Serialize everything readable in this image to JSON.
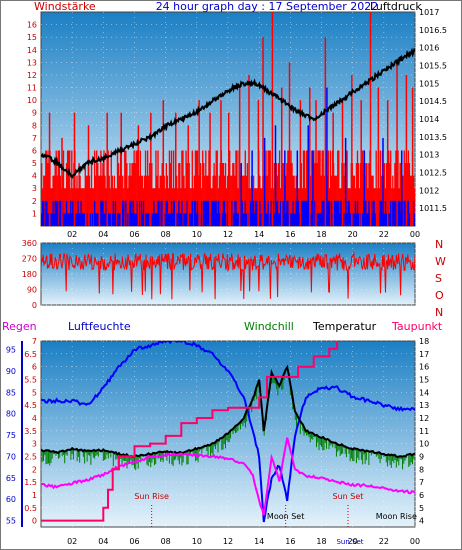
{
  "header": {
    "left_title": "Windstärke",
    "center_title": "24 hour graph day : 17 September 2022",
    "right_title": "Luftdruck"
  },
  "colors": {
    "red_series": "#ff0000",
    "blue_series": "#0000ff",
    "black_series": "#000000",
    "green_series": "#008000",
    "magenta_series": "#ff00ff",
    "crimson_series": "#ff0066",
    "axis_text_red": "#cc0000",
    "axis_text_blue": "#0000cc",
    "sun_text": "#cc0000",
    "bg_top": "#1b7fc4",
    "bg_bottom": "#e4f2fb"
  },
  "chart_data": [
    {
      "name": "wind",
      "type": "bar",
      "title": "24 hour graph day : 17 September 2022",
      "left_axis_label": "Windstärke",
      "right_axis_label": "Luftdruck",
      "x_ticks": [
        "02",
        "04",
        "06",
        "08",
        "10",
        "12",
        "14",
        "16",
        "18",
        "20",
        "22",
        "00"
      ],
      "left_ticks": [
        "1",
        "2",
        "3",
        "4",
        "5",
        "6",
        "7",
        "8",
        "9",
        "10",
        "11",
        "12",
        "13",
        "14",
        "15",
        "16"
      ],
      "right_ticks": [
        "1011.5",
        "1012",
        "1012.5",
        "1013",
        "1013.5",
        "1014",
        "1014.5",
        "1015",
        "1015.5",
        "1016",
        "1016.5",
        "1017"
      ],
      "ylim_left": [
        0,
        17
      ],
      "ylim_right": [
        1011,
        1017
      ],
      "gust_baseline_levels": [
        3,
        4,
        5,
        6
      ],
      "wind_baseline_levels": [
        1,
        2
      ],
      "gust_spikes": [
        {
          "hour": 0.5,
          "value": 9
        },
        {
          "hour": 1.3,
          "value": 7
        },
        {
          "hour": 2.1,
          "value": 9
        },
        {
          "hour": 3.0,
          "value": 8
        },
        {
          "hour": 4.2,
          "value": 9
        },
        {
          "hour": 5.1,
          "value": 9
        },
        {
          "hour": 6.2,
          "value": 8
        },
        {
          "hour": 7.0,
          "value": 9
        },
        {
          "hour": 7.8,
          "value": 10
        },
        {
          "hour": 8.6,
          "value": 9
        },
        {
          "hour": 9.4,
          "value": 8
        },
        {
          "hour": 10.1,
          "value": 10
        },
        {
          "hour": 10.8,
          "value": 9
        },
        {
          "hour": 11.5,
          "value": 10
        },
        {
          "hour": 12.0,
          "value": 9
        },
        {
          "hour": 12.7,
          "value": 11
        },
        {
          "hour": 13.3,
          "value": 12
        },
        {
          "hour": 13.9,
          "value": 10
        },
        {
          "hour": 14.2,
          "value": 15
        },
        {
          "hour": 14.8,
          "value": 17
        },
        {
          "hour": 15.4,
          "value": 11
        },
        {
          "hour": 15.9,
          "value": 13
        },
        {
          "hour": 16.6,
          "value": 10
        },
        {
          "hour": 17.2,
          "value": 11
        },
        {
          "hour": 17.6,
          "value": 10
        },
        {
          "hour": 18.2,
          "value": 15
        },
        {
          "hour": 18.7,
          "value": 9
        },
        {
          "hour": 19.3,
          "value": 10
        },
        {
          "hour": 19.9,
          "value": 12
        },
        {
          "hour": 20.5,
          "value": 10
        },
        {
          "hour": 21.1,
          "value": 17
        },
        {
          "hour": 21.6,
          "value": 11
        },
        {
          "hour": 22.2,
          "value": 10
        },
        {
          "hour": 22.8,
          "value": 13
        },
        {
          "hour": 23.4,
          "value": 12
        },
        {
          "hour": 23.8,
          "value": 11
        }
      ],
      "wind_spikes": [
        {
          "hour": 12.8,
          "value": 5
        },
        {
          "hour": 13.5,
          "value": 6
        },
        {
          "hour": 14.3,
          "value": 7
        },
        {
          "hour": 15.0,
          "value": 8
        },
        {
          "hour": 15.6,
          "value": 6
        },
        {
          "hour": 16.4,
          "value": 6
        },
        {
          "hour": 17.1,
          "value": 8
        },
        {
          "hour": 17.4,
          "value": 6
        },
        {
          "hour": 18.3,
          "value": 11
        },
        {
          "hour": 19.5,
          "value": 7
        },
        {
          "hour": 20.7,
          "value": 6
        },
        {
          "hour": 21.9,
          "value": 7
        },
        {
          "hour": 23.1,
          "value": 6
        }
      ],
      "pressure": [
        {
          "hour": 0.0,
          "value": 1013.0
        },
        {
          "hour": 1.0,
          "value": 1012.8
        },
        {
          "hour": 1.5,
          "value": 1012.6
        },
        {
          "hour": 2.0,
          "value": 1012.4
        },
        {
          "hour": 2.5,
          "value": 1012.6
        },
        {
          "hour": 3.0,
          "value": 1012.8
        },
        {
          "hour": 4.0,
          "value": 1012.9
        },
        {
          "hour": 5.0,
          "value": 1013.1
        },
        {
          "hour": 6.0,
          "value": 1013.3
        },
        {
          "hour": 7.0,
          "value": 1013.5
        },
        {
          "hour": 8.0,
          "value": 1013.8
        },
        {
          "hour": 9.0,
          "value": 1014.0
        },
        {
          "hour": 10.0,
          "value": 1014.2
        },
        {
          "hour": 11.0,
          "value": 1014.5
        },
        {
          "hour": 12.0,
          "value": 1014.8
        },
        {
          "hour": 13.0,
          "value": 1015.0
        },
        {
          "hour": 13.8,
          "value": 1015.0
        },
        {
          "hour": 14.5,
          "value": 1014.8
        },
        {
          "hour": 15.5,
          "value": 1014.5
        },
        {
          "hour": 16.5,
          "value": 1014.2
        },
        {
          "hour": 17.5,
          "value": 1014.0
        },
        {
          "hour": 18.5,
          "value": 1014.3
        },
        {
          "hour": 19.5,
          "value": 1014.6
        },
        {
          "hour": 20.5,
          "value": 1014.9
        },
        {
          "hour": 21.5,
          "value": 1015.2
        },
        {
          "hour": 22.5,
          "value": 1015.5
        },
        {
          "hour": 23.5,
          "value": 1015.8
        },
        {
          "hour": 24.0,
          "value": 1015.9
        }
      ]
    },
    {
      "name": "wind_direction",
      "type": "bar",
      "x_ticks": [
        "02",
        "04",
        "06",
        "08",
        "10",
        "12",
        "14",
        "16",
        "18",
        "20",
        "22",
        "00"
      ],
      "left_ticks": [
        "0",
        "90",
        "180",
        "270",
        "360"
      ],
      "right_labels": [
        "N",
        "W",
        "S",
        "O",
        "N"
      ],
      "ylim": [
        0,
        360
      ],
      "typical_range": [
        200,
        300
      ]
    },
    {
      "name": "humidity_temperature",
      "type": "line",
      "x_ticks": [
        "02",
        "04",
        "06",
        "08",
        "10",
        "12",
        "14",
        "16",
        "18",
        "20",
        "22",
        "00"
      ],
      "left_ticks_humidity": [
        "55",
        "60",
        "65",
        "70",
        "75",
        "80",
        "85",
        "90",
        "95"
      ],
      "left_ticks_rain": [
        "0",
        "0.5",
        "1",
        "1.5",
        "2",
        "2.5",
        "3",
        "3.5",
        "4",
        "4.5",
        "5",
        "5.5",
        "6",
        "6.5",
        "7"
      ],
      "right_ticks": [
        "4",
        "5",
        "6",
        "7",
        "8",
        "9",
        "10",
        "11",
        "12",
        "13",
        "14",
        "15",
        "16",
        "17",
        "18"
      ],
      "ylim_temperature": [
        3.5,
        18
      ],
      "legend": {
        "regen": "Regen",
        "luftfeuchte": "Luftfeuchte",
        "windchill": "Windchill",
        "temperatur": "Temperatur",
        "taupunkt": "Taupunkt"
      },
      "annotations": {
        "sun_rise": "Sun Rise",
        "moon_set": "Moon Set",
        "sun_set": "Sun Set",
        "moon_rise": "Moon Rise",
        "sun_set_tick": "Sun Set"
      },
      "humidity": [
        {
          "hour": 0.0,
          "value": 83
        },
        {
          "hour": 1.0,
          "value": 83
        },
        {
          "hour": 2.0,
          "value": 83
        },
        {
          "hour": 3.0,
          "value": 82
        },
        {
          "hour": 4.0,
          "value": 86
        },
        {
          "hour": 5.0,
          "value": 91
        },
        {
          "hour": 6.0,
          "value": 95
        },
        {
          "hour": 7.0,
          "value": 96
        },
        {
          "hour": 8.0,
          "value": 97
        },
        {
          "hour": 9.0,
          "value": 97
        },
        {
          "hour": 10.0,
          "value": 96
        },
        {
          "hour": 11.0,
          "value": 94
        },
        {
          "hour": 12.0,
          "value": 90
        },
        {
          "hour": 13.0,
          "value": 84
        },
        {
          "hour": 13.6,
          "value": 76
        },
        {
          "hour": 14.0,
          "value": 70
        },
        {
          "hour": 14.3,
          "value": 55
        },
        {
          "hour": 14.8,
          "value": 65
        },
        {
          "hour": 15.3,
          "value": 68
        },
        {
          "hour": 15.8,
          "value": 60
        },
        {
          "hour": 16.3,
          "value": 75
        },
        {
          "hour": 17.0,
          "value": 84
        },
        {
          "hour": 18.0,
          "value": 86
        },
        {
          "hour": 19.0,
          "value": 86
        },
        {
          "hour": 20.0,
          "value": 84
        },
        {
          "hour": 21.0,
          "value": 83
        },
        {
          "hour": 22.0,
          "value": 82
        },
        {
          "hour": 23.0,
          "value": 81
        },
        {
          "hour": 24.0,
          "value": 81
        }
      ],
      "temperature": [
        {
          "hour": 0.0,
          "value": 9.5
        },
        {
          "hour": 1.0,
          "value": 9.3
        },
        {
          "hour": 2.0,
          "value": 9.6
        },
        {
          "hour": 3.0,
          "value": 9.4
        },
        {
          "hour": 4.0,
          "value": 9.5
        },
        {
          "hour": 5.0,
          "value": 9.2
        },
        {
          "hour": 6.0,
          "value": 9.0
        },
        {
          "hour": 7.0,
          "value": 9.2
        },
        {
          "hour": 8.0,
          "value": 9.4
        },
        {
          "hour": 9.0,
          "value": 9.3
        },
        {
          "hour": 10.0,
          "value": 9.6
        },
        {
          "hour": 11.0,
          "value": 10.0
        },
        {
          "hour": 12.0,
          "value": 10.8
        },
        {
          "hour": 13.0,
          "value": 12.0
        },
        {
          "hour": 13.6,
          "value": 13.5
        },
        {
          "hour": 14.0,
          "value": 15.0
        },
        {
          "hour": 14.3,
          "value": 11.0
        },
        {
          "hour": 14.8,
          "value": 15.5
        },
        {
          "hour": 15.3,
          "value": 14.5
        },
        {
          "hour": 15.8,
          "value": 16.0
        },
        {
          "hour": 16.3,
          "value": 12.5
        },
        {
          "hour": 17.0,
          "value": 11.0
        },
        {
          "hour": 18.0,
          "value": 10.5
        },
        {
          "hour": 19.0,
          "value": 10.0
        },
        {
          "hour": 20.0,
          "value": 9.6
        },
        {
          "hour": 21.0,
          "value": 9.4
        },
        {
          "hour": 22.0,
          "value": 9.2
        },
        {
          "hour": 23.0,
          "value": 9.0
        },
        {
          "hour": 24.0,
          "value": 9.2
        }
      ],
      "dewpoint": [
        {
          "hour": 0.0,
          "value": 6.8
        },
        {
          "hour": 1.0,
          "value": 6.6
        },
        {
          "hour": 2.0,
          "value": 6.9
        },
        {
          "hour": 3.0,
          "value": 7.2
        },
        {
          "hour": 4.0,
          "value": 7.6
        },
        {
          "hour": 5.0,
          "value": 8.2
        },
        {
          "hour": 6.0,
          "value": 8.6
        },
        {
          "hour": 7.0,
          "value": 8.9
        },
        {
          "hour": 8.0,
          "value": 9.1
        },
        {
          "hour": 9.0,
          "value": 9.2
        },
        {
          "hour": 10.0,
          "value": 9.1
        },
        {
          "hour": 11.0,
          "value": 9.0
        },
        {
          "hour": 12.0,
          "value": 8.8
        },
        {
          "hour": 13.0,
          "value": 8.5
        },
        {
          "hour": 13.6,
          "value": 7.5
        },
        {
          "hour": 14.0,
          "value": 5.5
        },
        {
          "hour": 14.3,
          "value": 4.5
        },
        {
          "hour": 14.8,
          "value": 9.0
        },
        {
          "hour": 15.3,
          "value": 7.0
        },
        {
          "hour": 15.8,
          "value": 10.5
        },
        {
          "hour": 16.3,
          "value": 8.0
        },
        {
          "hour": 17.0,
          "value": 7.5
        },
        {
          "hour": 18.0,
          "value": 7.3
        },
        {
          "hour": 19.0,
          "value": 7.0
        },
        {
          "hour": 20.0,
          "value": 6.8
        },
        {
          "hour": 21.0,
          "value": 6.7
        },
        {
          "hour": 22.0,
          "value": 6.5
        },
        {
          "hour": 23.0,
          "value": 6.3
        },
        {
          "hour": 24.0,
          "value": 6.2
        }
      ],
      "rain": [
        {
          "hour": 0.0,
          "value": 0
        },
        {
          "hour": 3.5,
          "value": 0
        },
        {
          "hour": 4.0,
          "value": 0.5
        },
        {
          "hour": 4.3,
          "value": 1.2
        },
        {
          "hour": 4.6,
          "value": 2.0
        },
        {
          "hour": 5.0,
          "value": 2.5
        },
        {
          "hour": 6.0,
          "value": 2.9
        },
        {
          "hour": 7.0,
          "value": 3.0
        },
        {
          "hour": 8.0,
          "value": 3.3
        },
        {
          "hour": 9.0,
          "value": 3.8
        },
        {
          "hour": 10.0,
          "value": 4.0
        },
        {
          "hour": 11.0,
          "value": 4.3
        },
        {
          "hour": 12.0,
          "value": 4.4
        },
        {
          "hour": 13.5,
          "value": 4.4
        },
        {
          "hour": 14.0,
          "value": 4.8
        },
        {
          "hour": 14.5,
          "value": 5.6
        },
        {
          "hour": 16.5,
          "value": 6.0
        },
        {
          "hour": 17.5,
          "value": 6.4
        },
        {
          "hour": 18.5,
          "value": 6.7
        },
        {
          "hour": 19.0,
          "value": 7.0
        },
        {
          "hour": 24.0,
          "value": 7.0
        }
      ],
      "events": [
        {
          "key": "sun_rise",
          "hour": 7.1,
          "line": true
        },
        {
          "key": "moon_set",
          "hour": 15.7,
          "line": true
        },
        {
          "key": "sun_set",
          "hour": 19.7,
          "line": true
        },
        {
          "key": "moon_rise",
          "hour": 22.8,
          "line": false
        }
      ]
    }
  ]
}
